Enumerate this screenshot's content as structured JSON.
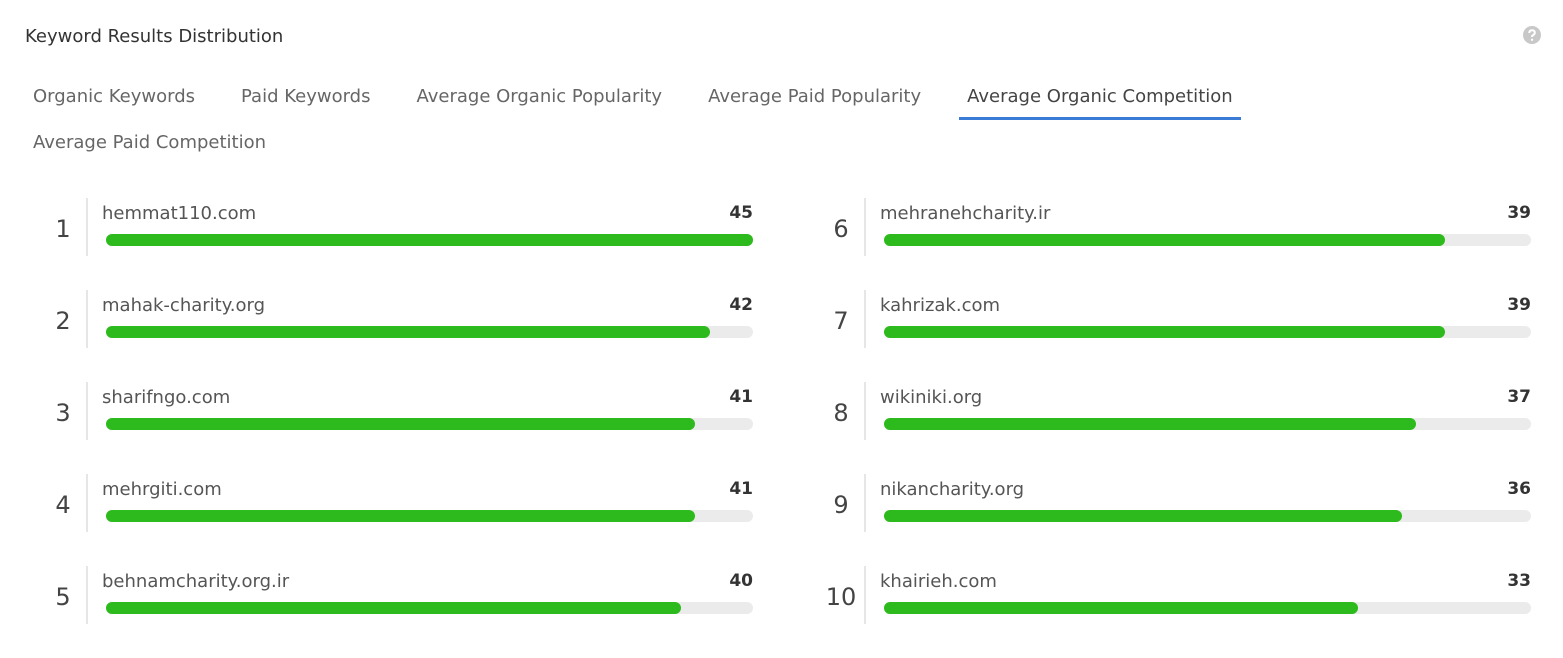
{
  "header": {
    "title": "Keyword Results Distribution"
  },
  "tabs": [
    "Organic Keywords",
    "Paid Keywords",
    "Average Organic Popularity",
    "Average Paid Popularity",
    "Average Organic Competition",
    "Average Paid Competition"
  ],
  "active_tab": 4,
  "items": [
    {
      "rank": 1,
      "label": "hemmat110.com",
      "value": 45
    },
    {
      "rank": 2,
      "label": "mahak-charity.org",
      "value": 42
    },
    {
      "rank": 3,
      "label": "sharifngo.com",
      "value": 41
    },
    {
      "rank": 4,
      "label": "mehrgiti.com",
      "value": 41
    },
    {
      "rank": 5,
      "label": "behnamcharity.org.ir",
      "value": 40
    },
    {
      "rank": 6,
      "label": "mehranehcharity.ir",
      "value": 39
    },
    {
      "rank": 7,
      "label": "kahrizak.com",
      "value": 39
    },
    {
      "rank": 8,
      "label": "wikiniki.org",
      "value": 37
    },
    {
      "rank": 9,
      "label": "nikancharity.org",
      "value": 36
    },
    {
      "rank": 10,
      "label": "khairieh.com",
      "value": 33
    }
  ],
  "bar_color": "#2dba1c"
}
